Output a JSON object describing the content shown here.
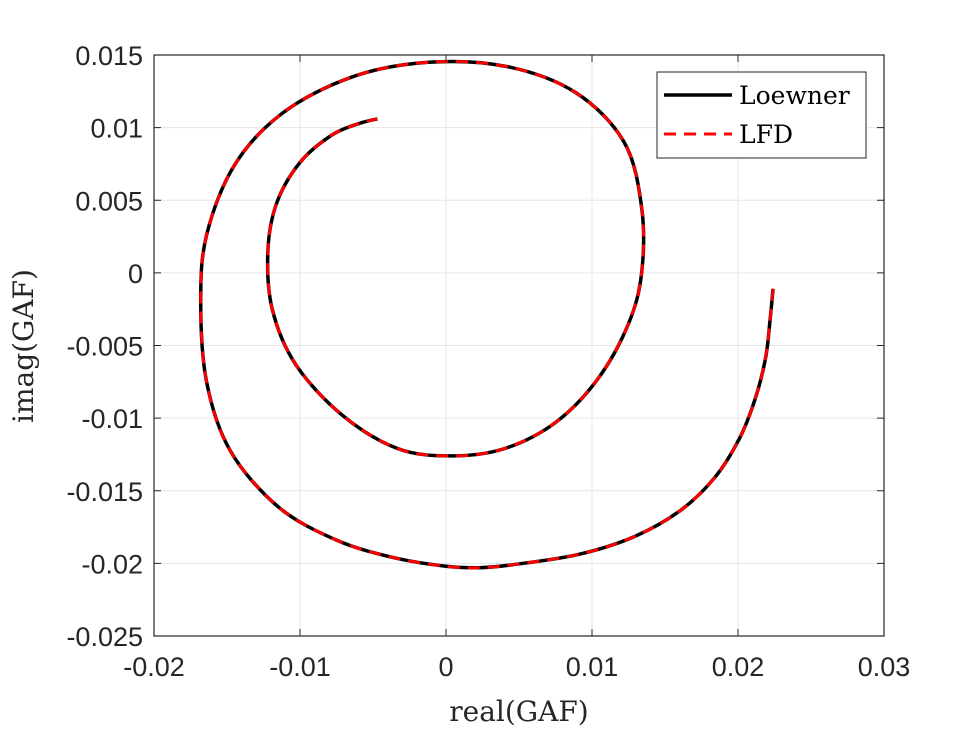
{
  "chart_data": {
    "type": "line",
    "xlabel": "real(GAF)",
    "ylabel": "imag(GAF)",
    "xlim": [
      -0.02,
      0.03
    ],
    "ylim": [
      -0.025,
      0.015
    ],
    "xticks": [
      -0.02,
      -0.01,
      0,
      0.01,
      0.02,
      0.03
    ],
    "xtick_labels": [
      "-0.02",
      "-0.01",
      "0",
      "0.01",
      "0.02",
      "0.03"
    ],
    "yticks": [
      -0.025,
      -0.02,
      -0.015,
      -0.01,
      -0.005,
      0,
      0.005,
      0.01,
      0.015
    ],
    "ytick_labels": [
      "-0.025",
      "-0.02",
      "-0.015",
      "-0.01",
      "-0.005",
      "0",
      "0.005",
      "0.01",
      "0.015"
    ],
    "grid": true,
    "legend_position": "top-right",
    "series": [
      {
        "name": "Loewner",
        "color": "#000000",
        "style": "solid",
        "x": [
          0.0224,
          0.0222,
          0.0219,
          0.0212,
          0.0201,
          0.0184,
          0.016,
          0.0128,
          0.009,
          0.0045,
          0.0023,
          0.0,
          -0.0036,
          -0.0075,
          -0.0115,
          -0.0148,
          -0.0164,
          -0.0168,
          -0.0164,
          -0.0145,
          -0.0112,
          -0.0064,
          -0.0012,
          0.0042,
          0.0089,
          0.0122,
          0.0134,
          0.0134,
          0.0125,
          0.0104,
          0.0075,
          0.004,
          0.0004,
          -0.0033,
          -0.0071,
          -0.0103,
          -0.0119,
          -0.0122,
          -0.0116,
          -0.01,
          -0.0078,
          -0.0059,
          -0.0047
        ],
        "y": [
          -0.0011,
          -0.0032,
          -0.0058,
          -0.0086,
          -0.0114,
          -0.0141,
          -0.0164,
          -0.0182,
          -0.0194,
          -0.0201,
          -0.0203,
          -0.0202,
          -0.0196,
          -0.0184,
          -0.0161,
          -0.0122,
          -0.0075,
          -0.002,
          0.0026,
          0.0074,
          0.011,
          0.0135,
          0.0145,
          0.0142,
          0.0124,
          0.009,
          0.0045,
          0.0,
          -0.0035,
          -0.0073,
          -0.0103,
          -0.0121,
          -0.0126,
          -0.0121,
          -0.0098,
          -0.0063,
          -0.0025,
          0.0015,
          0.0048,
          0.0076,
          0.0095,
          0.0103,
          0.0106
        ]
      },
      {
        "name": "LFD",
        "color": "#ff0000",
        "style": "dashed",
        "x": [
          0.0224,
          0.0222,
          0.0219,
          0.0212,
          0.0201,
          0.0184,
          0.016,
          0.0128,
          0.009,
          0.0045,
          0.0023,
          0.0,
          -0.0036,
          -0.0075,
          -0.0115,
          -0.0148,
          -0.0164,
          -0.0168,
          -0.0164,
          -0.0145,
          -0.0112,
          -0.0064,
          -0.0012,
          0.0042,
          0.0089,
          0.0122,
          0.0134,
          0.0134,
          0.0125,
          0.0104,
          0.0075,
          0.004,
          0.0004,
          -0.0033,
          -0.0071,
          -0.0103,
          -0.0119,
          -0.0122,
          -0.0116,
          -0.01,
          -0.0078,
          -0.0059,
          -0.0047
        ],
        "y": [
          -0.0011,
          -0.0032,
          -0.0058,
          -0.0086,
          -0.0114,
          -0.0141,
          -0.0164,
          -0.0182,
          -0.0194,
          -0.0201,
          -0.0203,
          -0.0202,
          -0.0196,
          -0.0184,
          -0.0161,
          -0.0122,
          -0.0075,
          -0.002,
          0.0026,
          0.0074,
          0.011,
          0.0135,
          0.0145,
          0.0142,
          0.0124,
          0.009,
          0.0045,
          0.0,
          -0.0035,
          -0.0073,
          -0.0103,
          -0.0121,
          -0.0126,
          -0.0121,
          -0.0098,
          -0.0063,
          -0.0025,
          0.0015,
          0.0048,
          0.0076,
          0.0095,
          0.0103,
          0.0106
        ]
      }
    ],
    "colors": {
      "grid": "#e6e6e6",
      "axis": "#262626",
      "background": "#ffffff"
    }
  }
}
